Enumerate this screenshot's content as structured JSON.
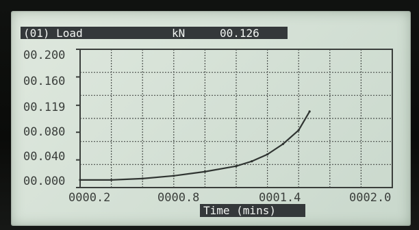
{
  "header": {
    "channel": "(01) Load",
    "unit": "kN",
    "value": "00.126"
  },
  "chart_data": {
    "type": "line",
    "title": "",
    "xlabel": "Time (mins)",
    "ylabel": "",
    "xlim": [
      0,
      2.0
    ],
    "ylim": [
      0,
      0.2
    ],
    "x_tick_labels": [
      "0000.2",
      "0000.8",
      "0001.4",
      "0002.0"
    ],
    "x_tick_values": [
      0.2,
      0.8,
      1.4,
      2.0
    ],
    "y_tick_labels": [
      "00.000",
      "00.040",
      "00.080",
      "00.119",
      "00.160",
      "00.200"
    ],
    "y_tick_values": [
      0.0,
      0.04,
      0.08,
      0.119,
      0.16,
      0.2
    ],
    "grid": true,
    "series": [
      {
        "x": [
          0.0,
          0.2,
          0.4,
          0.6,
          0.8,
          1.0,
          1.1,
          1.2,
          1.3,
          1.4,
          1.47
        ],
        "y": [
          0.011,
          0.011,
          0.013,
          0.017,
          0.023,
          0.031,
          0.038,
          0.048,
          0.063,
          0.083,
          0.11
        ]
      }
    ]
  }
}
